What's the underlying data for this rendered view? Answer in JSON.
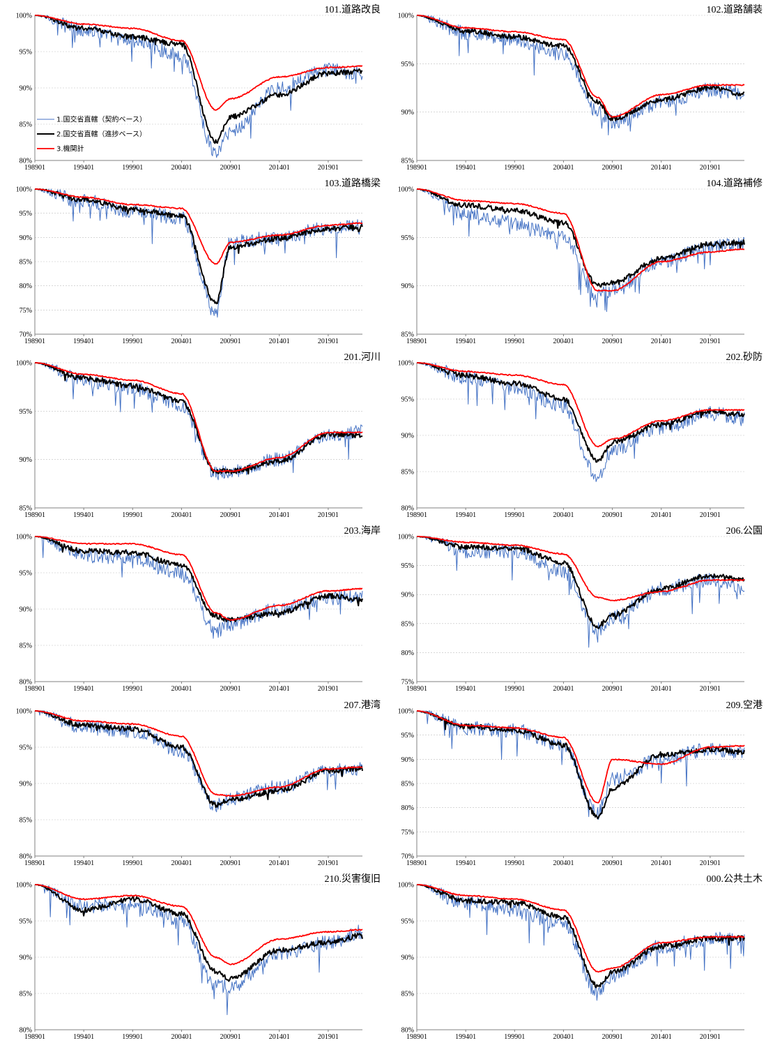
{
  "legend": {
    "series_1": "1.国交省直轄（契約ベース）",
    "series_2": "2.国交省直轄（進捗ベース）",
    "series_3": "3.機関計"
  },
  "colors": {
    "series_1": "#4472c4",
    "series_2": "#000000",
    "series_3": "#ff0000",
    "grid": "#bfbfbf"
  },
  "x_ticks": [
    "198901",
    "199401",
    "199901",
    "200401",
    "200901",
    "201401",
    "201901"
  ],
  "chart_data": [
    {
      "type": "line",
      "title": "101.道路改良",
      "ylim": [
        80,
        100
      ],
      "yticks": [
        "80%",
        "85%",
        "90%",
        "95%",
        "100%"
      ],
      "legend": "center-left",
      "x": [
        "198901",
        "199401",
        "199901",
        "200401",
        "200707",
        "200901",
        "201401",
        "201901",
        "202207"
      ],
      "series": [
        {
          "name": "1.国交省直轄（契約ベース）",
          "values": [
            100,
            98.0,
            96.5,
            94.5,
            81,
            84,
            90,
            92.5,
            92
          ]
        },
        {
          "name": "2.国交省直轄（進捗ベース）",
          "values": [
            100,
            98.2,
            97,
            96,
            82.5,
            86,
            89,
            92,
            92.3
          ]
        },
        {
          "name": "3.機関計",
          "values": [
            100,
            98.8,
            98.2,
            96.5,
            87,
            88.5,
            91.5,
            92.8,
            93
          ]
        }
      ]
    },
    {
      "type": "line",
      "title": "102.道路舗装",
      "ylim": [
        85,
        100
      ],
      "yticks": [
        "85%",
        "90%",
        "95%",
        "100%"
      ],
      "x": [
        "198901",
        "199401",
        "199901",
        "200401",
        "200707",
        "200901",
        "201401",
        "201901",
        "202207"
      ],
      "series": [
        {
          "name": "1.国交省直轄（契約ベース）",
          "values": [
            100,
            98.2,
            97.5,
            96,
            90,
            89,
            91,
            92.3,
            92
          ]
        },
        {
          "name": "2.国交省直轄（進捗ベース）",
          "values": [
            100,
            98.4,
            97.8,
            96.8,
            91,
            89.3,
            91.3,
            92.5,
            91.8
          ]
        },
        {
          "name": "3.機関計",
          "values": [
            100,
            98.7,
            98.3,
            97.5,
            91.5,
            89.5,
            91.8,
            92.8,
            92.8
          ]
        }
      ]
    },
    {
      "type": "line",
      "title": "103.道路橋梁",
      "ylim": [
        70,
        100
      ],
      "yticks": [
        "70%",
        "75%",
        "80%",
        "85%",
        "90%",
        "95%",
        "100%"
      ],
      "x": [
        "198901",
        "199401",
        "199901",
        "200401",
        "200707",
        "200901",
        "201401",
        "201901",
        "202207"
      ],
      "series": [
        {
          "name": "1.国交省直轄（契約ベース）",
          "values": [
            100,
            97.5,
            95.5,
            94,
            74,
            89,
            90,
            92,
            92.2
          ]
        },
        {
          "name": "2.国交省直轄（進捗ベース）",
          "values": [
            100,
            97.8,
            95.8,
            94.5,
            76.5,
            88,
            89.8,
            91.8,
            92.3
          ]
        },
        {
          "name": "3.機関計",
          "values": [
            100,
            98.3,
            96.8,
            96,
            84.5,
            89,
            90.5,
            92.5,
            93
          ]
        }
      ]
    },
    {
      "type": "line",
      "title": "104.道路補修",
      "ylim": [
        85,
        100
      ],
      "yticks": [
        "85%",
        "90%",
        "95%",
        "100%"
      ],
      "x": [
        "198901",
        "199401",
        "199901",
        "200401",
        "200707",
        "200901",
        "201401",
        "201901",
        "202207"
      ],
      "series": [
        {
          "name": "1.国交省直轄（契約ベース）",
          "values": [
            100,
            97.5,
            96.5,
            95,
            89,
            89.5,
            92.5,
            94,
            94.5
          ]
        },
        {
          "name": "2.国交省直轄（進捗ベース）",
          "values": [
            100,
            98.3,
            97.8,
            96.5,
            90,
            90.3,
            92.8,
            94.3,
            94.5
          ]
        },
        {
          "name": "3.機関計",
          "values": [
            100,
            98.8,
            98.5,
            97.5,
            89.5,
            89.5,
            92.5,
            93.5,
            93.8
          ]
        }
      ]
    },
    {
      "type": "line",
      "title": "201.河川",
      "ylim": [
        85,
        100
      ],
      "yticks": [
        "85%",
        "90%",
        "95%",
        "100%"
      ],
      "x": [
        "198901",
        "199401",
        "199901",
        "200401",
        "200707",
        "200901",
        "201401",
        "201901",
        "202207"
      ],
      "series": [
        {
          "name": "1.国交省直轄（契約ベース）",
          "values": [
            100,
            98.2,
            97.3,
            95.5,
            88.5,
            88.8,
            90,
            92.5,
            93
          ]
        },
        {
          "name": "2.国交省直轄（進捗ベース）",
          "values": [
            100,
            98.4,
            97.6,
            96,
            88.8,
            88.8,
            89.8,
            92.6,
            92.5
          ]
        },
        {
          "name": "3.機関計",
          "values": [
            100,
            98.8,
            98.2,
            96.8,
            88.8,
            88.8,
            90.2,
            92.8,
            92.8
          ]
        }
      ]
    },
    {
      "type": "line",
      "title": "202.砂防",
      "ylim": [
        80,
        100
      ],
      "yticks": [
        "80%",
        "85%",
        "90%",
        "95%",
        "100%"
      ],
      "x": [
        "198901",
        "199401",
        "199901",
        "200401",
        "200707",
        "200901",
        "201401",
        "201901",
        "202207"
      ],
      "series": [
        {
          "name": "1.国交省直轄（契約ベース）",
          "values": [
            100,
            98,
            96.5,
            94,
            84,
            88,
            91,
            93,
            92.5
          ]
        },
        {
          "name": "2.国交省直轄（進捗ベース）",
          "values": [
            100,
            98.2,
            97.2,
            95,
            86.5,
            89,
            91.5,
            93.3,
            92.8
          ]
        },
        {
          "name": "3.機関計",
          "values": [
            100,
            98.8,
            98.3,
            97,
            88.5,
            89.5,
            92,
            93.5,
            93.5
          ]
        }
      ]
    },
    {
      "type": "line",
      "title": "203.海岸",
      "ylim": [
        80,
        100
      ],
      "yticks": [
        "80%",
        "85%",
        "90%",
        "95%",
        "100%"
      ],
      "x": [
        "198901",
        "199401",
        "199901",
        "200401",
        "200707",
        "200901",
        "201401",
        "201901",
        "202207"
      ],
      "series": [
        {
          "name": "1.国交省直轄（契約ベース）",
          "values": [
            100,
            97.5,
            97,
            95,
            87,
            88,
            90,
            91.5,
            92
          ]
        },
        {
          "name": "2.国交省直轄（進捗ベース）",
          "values": [
            100,
            98,
            97.8,
            96,
            89,
            88.5,
            89.5,
            91.8,
            91.3
          ]
        },
        {
          "name": "3.機関計",
          "values": [
            100,
            99,
            99,
            97.5,
            89.5,
            88.5,
            90.5,
            92.5,
            92.8
          ]
        }
      ]
    },
    {
      "type": "line",
      "title": "206.公園",
      "ylim": [
        75,
        100
      ],
      "yticks": [
        "75%",
        "80%",
        "85%",
        "90%",
        "95%",
        "100%"
      ],
      "x": [
        "198901",
        "199401",
        "199901",
        "200401",
        "200707",
        "200901",
        "201401",
        "201901",
        "202207"
      ],
      "series": [
        {
          "name": "1.国交省直轄（契約ベース）",
          "values": [
            100,
            97.5,
            97.5,
            94,
            84,
            86,
            91,
            92.5,
            91
          ]
        },
        {
          "name": "2.国交省直轄（進捗ベース）",
          "values": [
            100,
            98.2,
            98,
            95.5,
            84.5,
            86.5,
            91,
            93.3,
            92.5
          ]
        },
        {
          "name": "3.機関計",
          "values": [
            100,
            99,
            98.5,
            97,
            89.5,
            89,
            90.5,
            92.5,
            92.5
          ]
        }
      ]
    },
    {
      "type": "line",
      "title": "207.港湾",
      "ylim": [
        80,
        100
      ],
      "yticks": [
        "80%",
        "85%",
        "90%",
        "95%",
        "100%"
      ],
      "x": [
        "198901",
        "199401",
        "199901",
        "200401",
        "200707",
        "200901",
        "201401",
        "201901",
        "202207"
      ],
      "series": [
        {
          "name": "1.国交省直轄（契約ベース）",
          "values": [
            100,
            97.8,
            97.3,
            94.5,
            87,
            88,
            89.5,
            91.8,
            92
          ]
        },
        {
          "name": "2.国交省直轄（進捗ベース）",
          "values": [
            100,
            98,
            97.5,
            95,
            87,
            87.8,
            89,
            91.8,
            92
          ]
        },
        {
          "name": "3.機関計",
          "values": [
            100,
            98.6,
            98.2,
            96.5,
            88.5,
            88.3,
            89.5,
            92,
            92.3
          ]
        }
      ]
    },
    {
      "type": "line",
      "title": "209.空港",
      "ylim": [
        70,
        100
      ],
      "yticks": [
        "70%",
        "75%",
        "80%",
        "85%",
        "90%",
        "95%",
        "100%"
      ],
      "x": [
        "198901",
        "199401",
        "199901",
        "200401",
        "200707",
        "200901",
        "201401",
        "201901",
        "202207"
      ],
      "series": [
        {
          "name": "1.国交省直轄（契約ベース）",
          "values": [
            100,
            96.5,
            96,
            93,
            79,
            86,
            90,
            92,
            91.5
          ]
        },
        {
          "name": "2.国交省直轄（進捗ベース）",
          "values": [
            100,
            96.8,
            96,
            93,
            78,
            84,
            91,
            92,
            91.5
          ]
        },
        {
          "name": "3.機関計",
          "values": [
            100,
            97,
            96.5,
            94.5,
            81,
            90,
            89,
            92.5,
            92.8
          ]
        }
      ]
    },
    {
      "type": "line",
      "title": "210.災害復旧",
      "ylim": [
        80,
        100
      ],
      "yticks": [
        "80%",
        "85%",
        "90%",
        "95%",
        "100%"
      ],
      "x": [
        "198901",
        "199401",
        "199901",
        "200401",
        "200707",
        "200901",
        "201401",
        "201901",
        "202207"
      ],
      "series": [
        {
          "name": "1.国交省直轄（契約ベース）",
          "values": [
            100,
            97,
            97.5,
            95,
            86,
            86,
            90.5,
            92,
            93.5
          ]
        },
        {
          "name": "2.国交省直轄（進捗ベース）",
          "values": [
            100,
            96.5,
            98,
            96,
            88,
            87,
            91,
            92,
            93
          ]
        },
        {
          "name": "3.機関計",
          "values": [
            100,
            98,
            98.5,
            97,
            90,
            89,
            92.5,
            93.5,
            93.8
          ]
        }
      ]
    },
    {
      "type": "line",
      "title": "000.公共土木",
      "ylim": [
        80,
        100
      ],
      "yticks": [
        "80%",
        "85%",
        "90%",
        "95%",
        "100%"
      ],
      "x": [
        "198901",
        "199401",
        "199901",
        "200401",
        "200707",
        "200901",
        "201401",
        "201901",
        "202207"
      ],
      "series": [
        {
          "name": "1.国交省直轄（契約ベース）",
          "values": [
            100,
            97.5,
            96.5,
            94.5,
            85,
            87.5,
            91.5,
            92.5,
            92.5
          ]
        },
        {
          "name": "2.国交省直轄（進捗ベース）",
          "values": [
            100,
            97.8,
            97.5,
            95.5,
            86,
            88,
            91.5,
            92.6,
            92.6
          ]
        },
        {
          "name": "3.機関計",
          "values": [
            100,
            98.5,
            98,
            96.5,
            88,
            88.5,
            92,
            92.8,
            92.8
          ]
        }
      ]
    }
  ]
}
